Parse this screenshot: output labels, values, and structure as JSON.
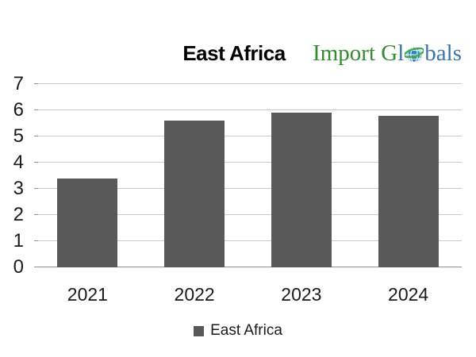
{
  "header": {
    "title": "East Africa",
    "logo": {
      "part1": "Import G",
      "part2": "l",
      "part3": "bals",
      "globe_icon": "globe-icon"
    }
  },
  "legend": {
    "label": "East Africa"
  },
  "chart_data": {
    "type": "bar",
    "title": "East Africa",
    "categories": [
      "2021",
      "2022",
      "2023",
      "2024"
    ],
    "series": [
      {
        "name": "East Africa",
        "values": [
          3.4,
          5.6,
          5.9,
          5.8
        ]
      }
    ],
    "xlabel": "",
    "ylabel": "",
    "ylim": [
      0,
      7
    ],
    "yticks": [
      0,
      1,
      2,
      3,
      4,
      5,
      6,
      7
    ],
    "grid": true,
    "legend_position": "bottom"
  },
  "colors": {
    "bar": "#595959",
    "gridline": "#c9c9c9",
    "axis_line": "#8f8f8f",
    "label_text": "#1a1a1a",
    "title_text": "#000000",
    "logo_green": "#338b33",
    "logo_blue": "#3e76a8",
    "globe_fill": "#2e86c1",
    "globe_lines": "#ffffff",
    "globe_swoosh": "#3fae49"
  }
}
